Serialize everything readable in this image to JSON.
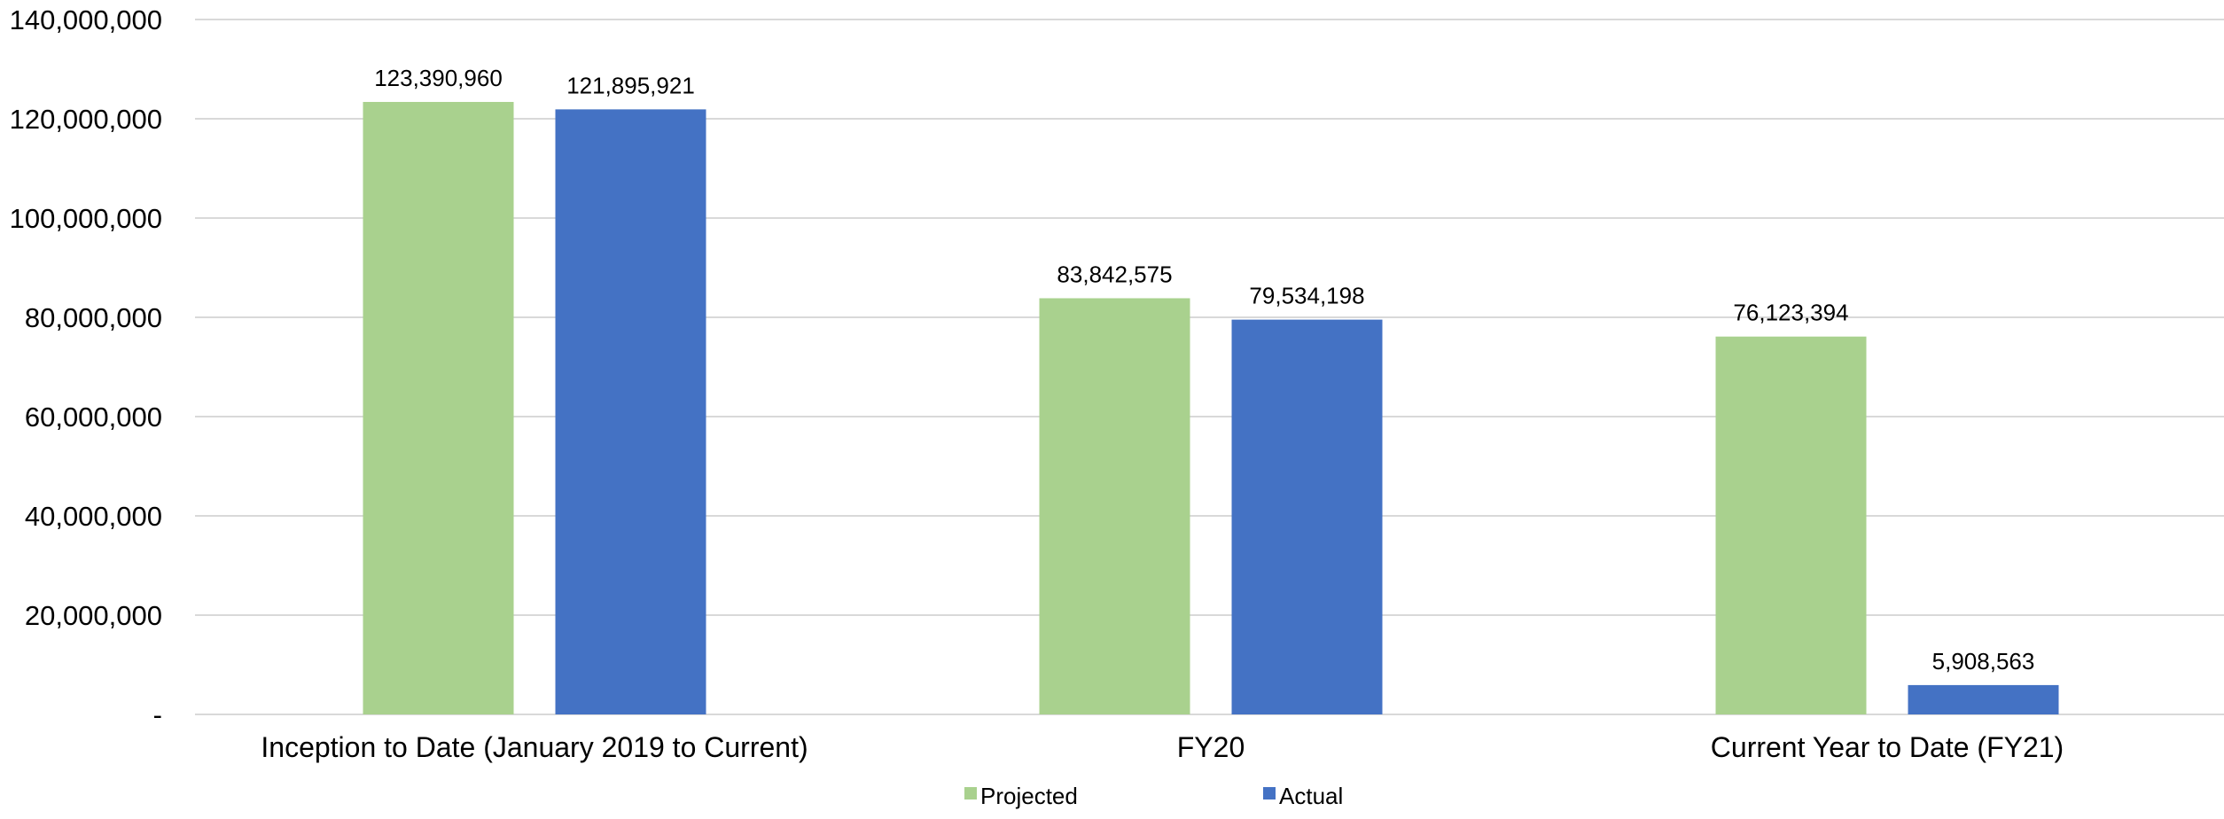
{
  "chart_data": {
    "type": "bar",
    "title": "",
    "xlabel": "",
    "ylabel": "",
    "categories": [
      "Inception to Date (January 2019 to Current)",
      "FY20",
      "Current Year to Date (FY21)"
    ],
    "series": [
      {
        "name": "Projected",
        "color": "#a9d18e",
        "values": [
          123390960,
          83842575,
          76123394
        ],
        "labels": [
          "123,390,960",
          "83,842,575",
          "76,123,394"
        ]
      },
      {
        "name": "Actual",
        "color": "#4472c4",
        "values": [
          121895921,
          79534198,
          5908563
        ],
        "labels": [
          "121,895,921",
          "79,534,198",
          "5,908,563"
        ]
      }
    ],
    "ylim": [
      0,
      140000000
    ],
    "y_ticks": [
      0,
      20000000,
      40000000,
      60000000,
      80000000,
      100000000,
      120000000,
      140000000
    ],
    "y_tick_labels": [
      "-",
      "20,000,000",
      "40,000,000",
      "60,000,000",
      "80,000,000",
      "100,000,000",
      "120,000,000",
      "140,000,000"
    ],
    "grid": true,
    "legend_position": "bottom"
  }
}
